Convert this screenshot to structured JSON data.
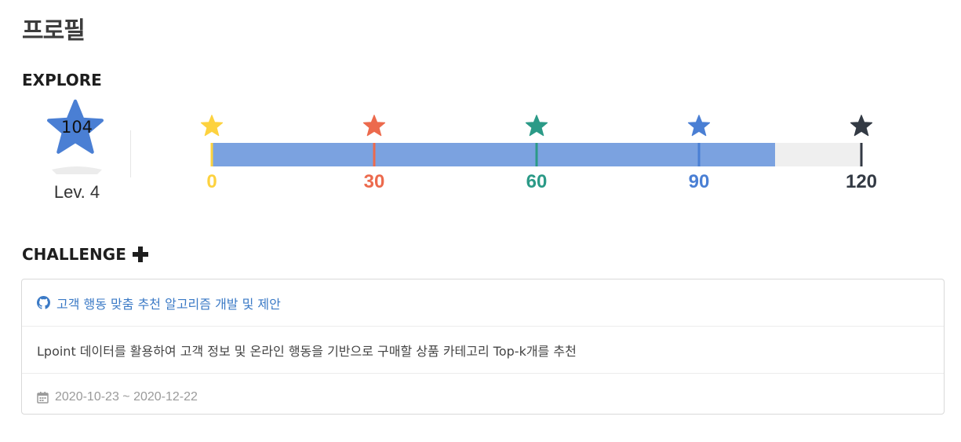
{
  "page": {
    "title": "프로필"
  },
  "explore": {
    "title": "EXPLORE",
    "level": {
      "value": "104",
      "label": "Lev. 4",
      "star_color": "#4a7fd4"
    },
    "progress": {
      "max": 120,
      "current": 104,
      "fill_color": "#7ba2e0",
      "milestones": [
        {
          "value": 0,
          "label": "0",
          "color": "#fdd23f"
        },
        {
          "value": 30,
          "label": "30",
          "color": "#ec6a4d"
        },
        {
          "value": 60,
          "label": "60",
          "color": "#2b9a87"
        },
        {
          "value": 90,
          "label": "90",
          "color": "#4a7fd4"
        },
        {
          "value": 120,
          "label": "120",
          "color": "#333a44"
        }
      ]
    }
  },
  "challenge": {
    "title": "CHALLENGE",
    "add_icon": "plus-icon",
    "card": {
      "title_icon": "github-icon",
      "title": "고객 행동 맞춤 추천 알고리즘 개발 및 제안",
      "description": "Lpoint 데이터를 활용하여 고객 정보 및 온라인 행동을 기반으로 구매할 상품 카테고리 Top-k개를 추천",
      "date_icon": "calendar-icon",
      "date_range": "2020-10-23 ~ 2020-12-22",
      "link_color": "#3b7ac6"
    }
  }
}
